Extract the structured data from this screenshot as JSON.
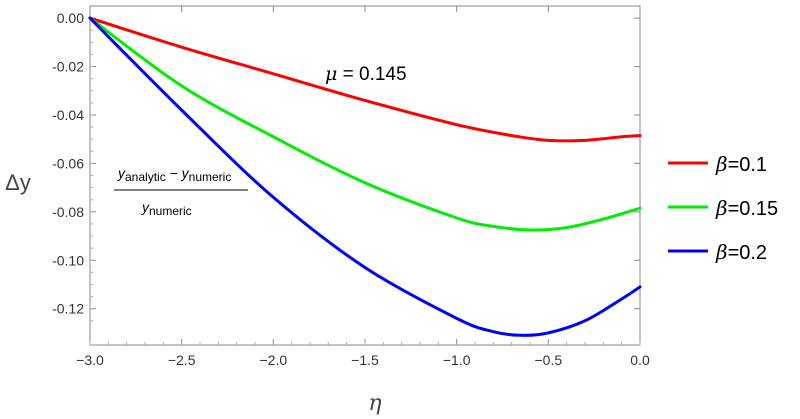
{
  "chart_data": {
    "type": "line",
    "xlabel": "η",
    "ylabel": "Δy",
    "xlim": [
      -3.0,
      0.0
    ],
    "ylim": [
      -0.135,
      0.005
    ],
    "x_ticks": [
      -3.0,
      -2.5,
      -2.0,
      -1.5,
      -1.0,
      -0.5,
      0.0
    ],
    "x_tick_labels": [
      "−3.0",
      "−2.5",
      "−2.0",
      "−1.5",
      "−1.0",
      "−0.5",
      "0.0"
    ],
    "y_ticks": [
      0.0,
      -0.02,
      -0.04,
      -0.06,
      -0.08,
      -0.1,
      -0.12
    ],
    "y_tick_labels": [
      "0.00",
      "-0.02",
      "-0.04",
      "-0.06",
      "-0.08",
      "-0.10",
      "-0.12"
    ],
    "annotations": {
      "mu_symbol": "μ",
      "mu_value": " = 0.145",
      "fraction": {
        "num_y1": "y",
        "num_sub1": "analytic",
        "num_minus": " − ",
        "num_y2": "y",
        "num_sub2": "numeric",
        "den_y": "y",
        "den_sub": "numeric"
      }
    },
    "legend_position": "right",
    "series": [
      {
        "beta_symbol": "β",
        "name": "=0.1",
        "color": "#ff0000",
        "x": [
          -3.0,
          -2.5,
          -2.0,
          -1.5,
          -1.0,
          -0.7,
          -0.5,
          -0.3,
          -0.1,
          0.0
        ],
        "y": [
          0.0,
          -0.012,
          -0.023,
          -0.034,
          -0.044,
          -0.0485,
          -0.0505,
          -0.0505,
          -0.049,
          -0.0485
        ]
      },
      {
        "beta_symbol": "β",
        "name": "=0.15",
        "color": "#00ee00",
        "x": [
          -3.0,
          -2.5,
          -2.0,
          -1.5,
          -1.0,
          -0.8,
          -0.6,
          -0.4,
          -0.2,
          0.0
        ],
        "y": [
          0.0,
          -0.028,
          -0.049,
          -0.068,
          -0.0825,
          -0.086,
          -0.0875,
          -0.0865,
          -0.083,
          -0.0785
        ]
      },
      {
        "beta_symbol": "β",
        "name": "=0.2",
        "color": "#0000ff",
        "x": [
          -3.0,
          -2.5,
          -2.0,
          -1.5,
          -1.0,
          -0.8,
          -0.65,
          -0.5,
          -0.3,
          -0.1,
          0.0
        ],
        "y": [
          0.0,
          -0.038,
          -0.074,
          -0.103,
          -0.124,
          -0.1295,
          -0.131,
          -0.13,
          -0.125,
          -0.116,
          -0.111
        ]
      }
    ]
  }
}
